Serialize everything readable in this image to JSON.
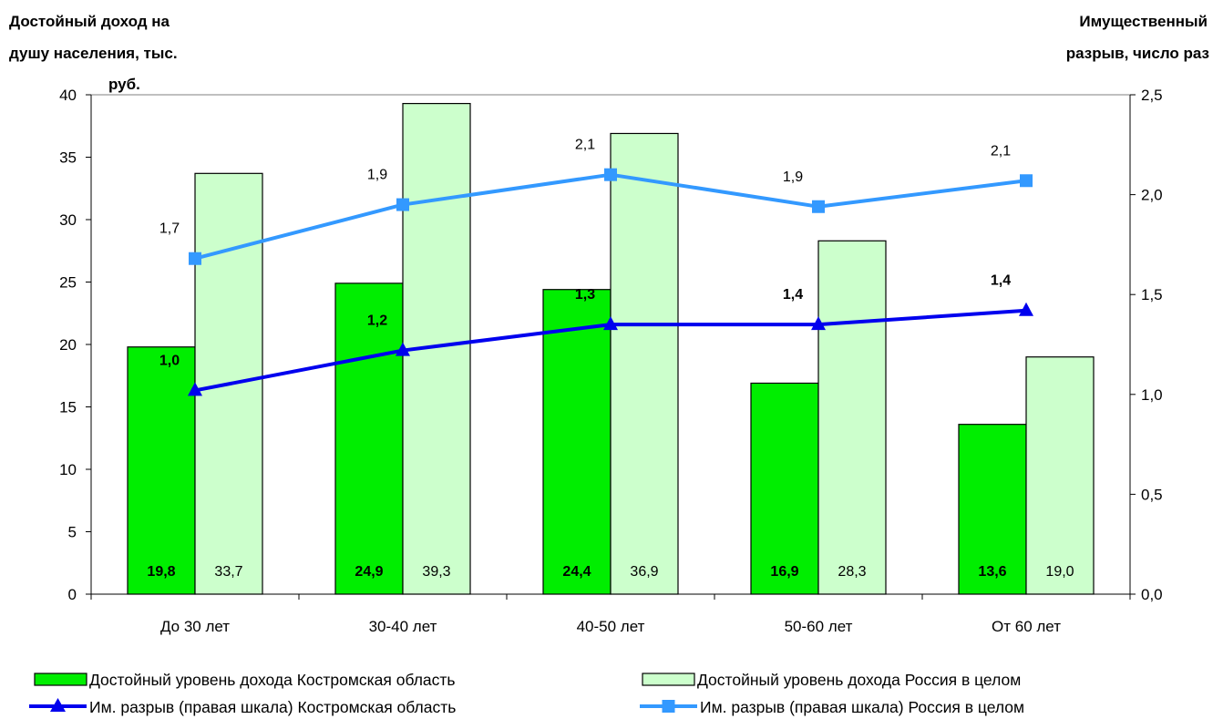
{
  "chart_data": {
    "type": "bar",
    "categories": [
      "До 30 лет",
      "30-40 лет",
      "40-50 лет",
      "50-60 лет",
      "От 60 лет"
    ],
    "left_axis": {
      "title_lines": [
        "Достойный доход на",
        "душу населения, тыс.",
        "руб."
      ],
      "ylim": [
        0,
        40
      ],
      "ticks": [
        "0",
        "5",
        "10",
        "15",
        "20",
        "25",
        "30",
        "35",
        "40"
      ]
    },
    "right_axis": {
      "title_lines": [
        "Имущественный",
        "разрыв, число раз"
      ],
      "ylim": [
        0,
        2.5
      ],
      "ticks": [
        "0,0",
        "0,5",
        "1,0",
        "1,5",
        "2,0",
        "2,5"
      ]
    },
    "series": [
      {
        "name": "Достойный уровень дохода Костромская область",
        "kind": "bar",
        "axis": "left",
        "color": "#00ee00",
        "values": [
          19.8,
          24.9,
          24.4,
          16.9,
          13.6
        ],
        "labels": [
          "19,8",
          "24,9",
          "24,4",
          "16,9",
          "13,6"
        ],
        "label_bold": true
      },
      {
        "name": "Достойный уровень дохода Россия в целом",
        "kind": "bar",
        "axis": "left",
        "color": "#ccffcc",
        "values": [
          33.7,
          39.3,
          36.9,
          28.3,
          19.0
        ],
        "labels": [
          "33,7",
          "39,3",
          "36,9",
          "28,3",
          "19,0"
        ],
        "label_bold": false
      },
      {
        "name": "Им. разрыв (правая шкала) Костромская область",
        "kind": "line",
        "axis": "right",
        "color": "#0000ee",
        "marker": "triangle",
        "values": [
          1.02,
          1.22,
          1.35,
          1.35,
          1.42
        ],
        "labels": [
          "1,0",
          "1,2",
          "1,3",
          "1,4",
          "1,4"
        ],
        "label_bold": true
      },
      {
        "name": "Им. разрыв (правая шкала) Россия в целом",
        "kind": "line",
        "axis": "right",
        "color": "#3399ff",
        "marker": "square",
        "values": [
          1.68,
          1.95,
          2.1,
          1.94,
          2.07
        ],
        "labels": [
          "1,7",
          "1,9",
          "2,1",
          "1,9",
          "2,1"
        ],
        "label_bold": false
      }
    ],
    "grid": false,
    "legend_position": "bottom"
  }
}
